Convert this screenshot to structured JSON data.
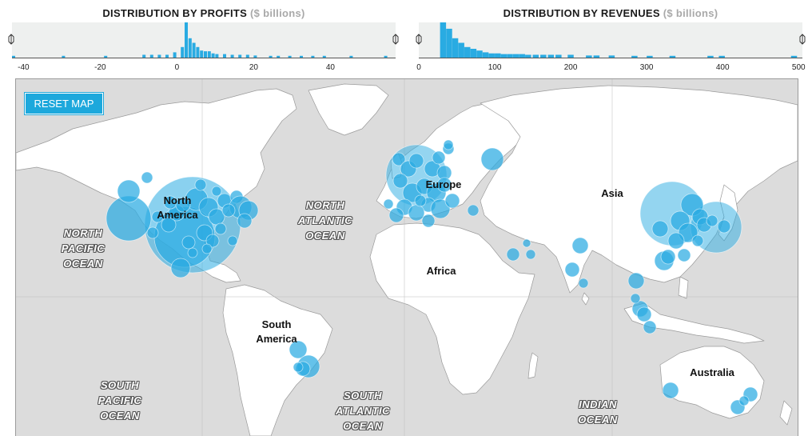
{
  "profits_histogram": {
    "title": "DISTRIBUTION BY PROFITS",
    "unit": "($ billions)",
    "ticks": [
      "-40",
      "-20",
      "0",
      "20",
      "40"
    ],
    "tick_values": [
      -40,
      -20,
      0,
      20,
      40
    ],
    "xlim": [
      -43,
      57
    ],
    "bins": [
      {
        "x": -43,
        "h": 0.05
      },
      {
        "x": -30,
        "h": 0.05
      },
      {
        "x": -19,
        "h": 0.05
      },
      {
        "x": -9,
        "h": 0.08
      },
      {
        "x": -7,
        "h": 0.08
      },
      {
        "x": -5,
        "h": 0.08
      },
      {
        "x": -3,
        "h": 0.08
      },
      {
        "x": -1,
        "h": 0.15
      },
      {
        "x": 1,
        "h": 0.3
      },
      {
        "x": 2,
        "h": 1.0
      },
      {
        "x": 3,
        "h": 0.55
      },
      {
        "x": 4,
        "h": 0.42
      },
      {
        "x": 5,
        "h": 0.3
      },
      {
        "x": 6,
        "h": 0.2
      },
      {
        "x": 7,
        "h": 0.18
      },
      {
        "x": 8,
        "h": 0.18
      },
      {
        "x": 9,
        "h": 0.12
      },
      {
        "x": 10,
        "h": 0.1
      },
      {
        "x": 12,
        "h": 0.1
      },
      {
        "x": 14,
        "h": 0.08
      },
      {
        "x": 16,
        "h": 0.08
      },
      {
        "x": 18,
        "h": 0.08
      },
      {
        "x": 20,
        "h": 0.06
      },
      {
        "x": 24,
        "h": 0.05
      },
      {
        "x": 26,
        "h": 0.05
      },
      {
        "x": 29,
        "h": 0.05
      },
      {
        "x": 32,
        "h": 0.05
      },
      {
        "x": 35,
        "h": 0.05
      },
      {
        "x": 38,
        "h": 0.05
      },
      {
        "x": 45,
        "h": 0.05
      },
      {
        "x": 54,
        "h": 0.05
      }
    ]
  },
  "revenues_histogram": {
    "title": "DISTRIBUTION BY REVENUES",
    "unit": "($ billions)",
    "ticks": [
      "0",
      "100",
      "200",
      "300",
      "400",
      "500"
    ],
    "tick_values": [
      0,
      100,
      200,
      300,
      400,
      500
    ],
    "xlim": [
      0,
      505
    ],
    "bins": [
      {
        "x": 28,
        "h": 1.0
      },
      {
        "x": 36,
        "h": 0.82
      },
      {
        "x": 44,
        "h": 0.55
      },
      {
        "x": 52,
        "h": 0.42
      },
      {
        "x": 60,
        "h": 0.3
      },
      {
        "x": 68,
        "h": 0.25
      },
      {
        "x": 76,
        "h": 0.2
      },
      {
        "x": 84,
        "h": 0.15
      },
      {
        "x": 92,
        "h": 0.12
      },
      {
        "x": 100,
        "h": 0.12
      },
      {
        "x": 108,
        "h": 0.1
      },
      {
        "x": 116,
        "h": 0.1
      },
      {
        "x": 124,
        "h": 0.1
      },
      {
        "x": 132,
        "h": 0.1
      },
      {
        "x": 140,
        "h": 0.08
      },
      {
        "x": 150,
        "h": 0.08
      },
      {
        "x": 160,
        "h": 0.08
      },
      {
        "x": 170,
        "h": 0.08
      },
      {
        "x": 180,
        "h": 0.08
      },
      {
        "x": 196,
        "h": 0.08
      },
      {
        "x": 220,
        "h": 0.06
      },
      {
        "x": 230,
        "h": 0.06
      },
      {
        "x": 250,
        "h": 0.06
      },
      {
        "x": 280,
        "h": 0.05
      },
      {
        "x": 300,
        "h": 0.05
      },
      {
        "x": 330,
        "h": 0.05
      },
      {
        "x": 380,
        "h": 0.05
      },
      {
        "x": 395,
        "h": 0.05
      },
      {
        "x": 490,
        "h": 0.05
      }
    ]
  },
  "map": {
    "reset_label": "RESET MAP",
    "bubble_color": "#29abe2",
    "continents": [
      {
        "id": "north-america",
        "lines": [
          "North",
          "America"
        ]
      },
      {
        "id": "south-america",
        "lines": [
          "South",
          "America"
        ]
      },
      {
        "id": "europe",
        "lines": [
          "Europe"
        ]
      },
      {
        "id": "africa",
        "lines": [
          "Africa"
        ]
      },
      {
        "id": "asia",
        "lines": [
          "Asia"
        ]
      },
      {
        "id": "australia",
        "lines": [
          "Australia"
        ]
      }
    ],
    "oceans": [
      {
        "id": "north-pacific",
        "lines": [
          "NORTH",
          "PACIFIC",
          "OCEAN"
        ]
      },
      {
        "id": "north-atlantic",
        "lines": [
          "NORTH",
          "ATLANTIC",
          "OCEAN"
        ]
      },
      {
        "id": "south-pacific",
        "lines": [
          "SOUTH",
          "PACIFIC",
          "OCEAN"
        ]
      },
      {
        "id": "south-atlantic",
        "lines": [
          "SOUTH",
          "ATLANTIC",
          "OCEAN"
        ]
      },
      {
        "id": "indian",
        "lines": [
          "INDIAN",
          "OCEAN"
        ]
      }
    ]
  }
}
